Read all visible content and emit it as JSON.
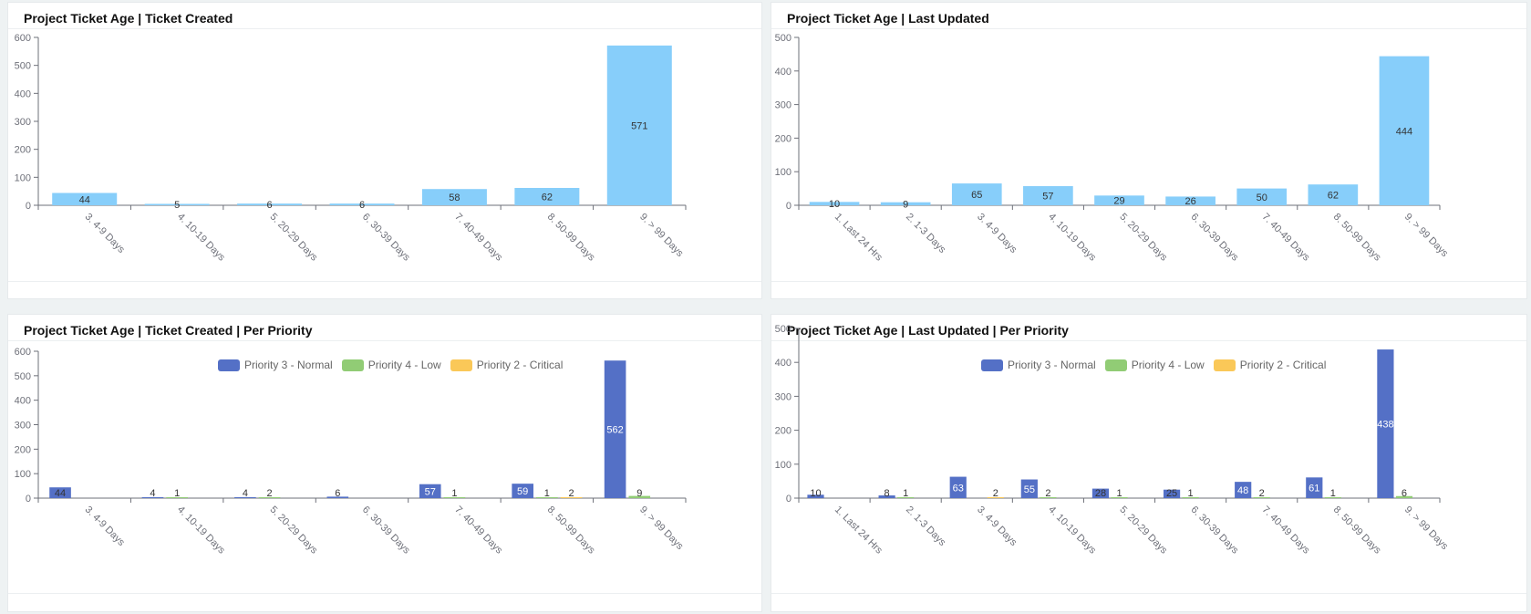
{
  "colors": {
    "single": "#87cefa",
    "priority_3_normal": "#5470c6",
    "priority_4_low": "#91cc75",
    "priority_2_critical": "#fac858"
  },
  "panels": {
    "tl": {
      "title": "Project Ticket Age | Ticket Created"
    },
    "tr": {
      "title": "Project Ticket Age | Last Updated"
    },
    "bl": {
      "title": "Project Ticket Age | Ticket Created | Per Priority"
    },
    "br": {
      "title": "Project Ticket Age | Last Updated | Per Priority"
    }
  },
  "legend": {
    "items": [
      {
        "label": "Priority 3 - Normal",
        "color": "#5470c6"
      },
      {
        "label": "Priority 4 - Low",
        "color": "#91cc75"
      },
      {
        "label": "Priority 2 - Critical",
        "color": "#fac858"
      }
    ]
  },
  "chart_data": [
    {
      "type": "bar",
      "title": "Project Ticket Age | Ticket Created",
      "categories": [
        "3. 4-9 Days",
        "4. 10-19 Days",
        "5. 20-29 Days",
        "6. 30-39 Days",
        "7. 40-49 Days",
        "8. 50-99 Days",
        "9. > 99 Days"
      ],
      "values": [
        44,
        5,
        6,
        6,
        58,
        62,
        571
      ],
      "ylim": [
        0,
        600
      ],
      "yticks": [
        0,
        100,
        200,
        300,
        400,
        500,
        600
      ],
      "grid": false,
      "color": "#87cefa"
    },
    {
      "type": "bar",
      "title": "Project Ticket Age | Last Updated",
      "categories": [
        "1. Last 24 Hrs",
        "2. 1-3 Days",
        "3. 4-9 Days",
        "4. 10-19 Days",
        "5. 20-29 Days",
        "6. 30-39 Days",
        "7. 40-49 Days",
        "8. 50-99 Days",
        "9. > 99 Days"
      ],
      "values": [
        10,
        9,
        65,
        57,
        29,
        26,
        50,
        62,
        444
      ],
      "ylim": [
        0,
        500
      ],
      "yticks": [
        0,
        100,
        200,
        300,
        400,
        500
      ],
      "grid": false,
      "color": "#87cefa"
    },
    {
      "type": "bar",
      "title": "Project Ticket Age | Ticket Created | Per Priority",
      "categories": [
        "3. 4-9 Days",
        "4. 10-19 Days",
        "5. 20-29 Days",
        "6. 30-39 Days",
        "7. 40-49 Days",
        "8. 50-99 Days",
        "9. > 99 Days"
      ],
      "series": [
        {
          "name": "Priority 3 - Normal",
          "values": [
            44,
            4,
            4,
            6,
            57,
            59,
            562
          ],
          "color": "#5470c6"
        },
        {
          "name": "Priority 4 - Low",
          "values": [
            null,
            1,
            2,
            null,
            1,
            1,
            9
          ],
          "color": "#91cc75"
        },
        {
          "name": "Priority 2 - Critical",
          "values": [
            null,
            null,
            null,
            null,
            null,
            2,
            null
          ],
          "color": "#fac858"
        }
      ],
      "ylim": [
        0,
        600
      ],
      "yticks": [
        0,
        100,
        200,
        300,
        400,
        500,
        600
      ],
      "grid": false,
      "legend": "top-center"
    },
    {
      "type": "bar",
      "title": "Project Ticket Age | Last Updated | Per Priority",
      "categories": [
        "1. Last 24 Hrs",
        "2. 1-3 Days",
        "3. 4-9 Days",
        "4. 10-19 Days",
        "5. 20-29 Days",
        "6. 30-39 Days",
        "7. 40-49 Days",
        "8. 50-99 Days",
        "9. > 99 Days"
      ],
      "series": [
        {
          "name": "Priority 3 - Normal",
          "values": [
            10,
            8,
            63,
            55,
            28,
            25,
            48,
            61,
            438
          ],
          "color": "#5470c6"
        },
        {
          "name": "Priority 4 - Low",
          "values": [
            null,
            1,
            null,
            2,
            1,
            1,
            2,
            1,
            6
          ],
          "color": "#91cc75"
        },
        {
          "name": "Priority 2 - Critical",
          "values": [
            null,
            null,
            2,
            null,
            null,
            null,
            null,
            null,
            null
          ],
          "color": "#fac858"
        }
      ],
      "ylim": [
        0,
        500
      ],
      "yticks": [
        0,
        100,
        200,
        300,
        400,
        500
      ],
      "grid": false,
      "legend": "top-center"
    }
  ]
}
